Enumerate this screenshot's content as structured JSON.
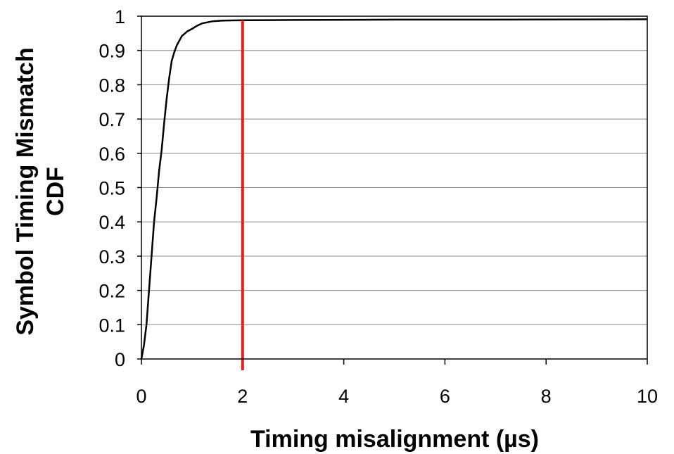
{
  "chart_data": {
    "type": "line",
    "title": "",
    "xlabel": "Timing misalignment (µs)",
    "ylabel_line1": "Symbol Timing Mismatch",
    "ylabel_line2": "CDF",
    "xlim": [
      0,
      10
    ],
    "ylim": [
      0,
      1
    ],
    "x_ticks": [
      0,
      2,
      4,
      6,
      8,
      10
    ],
    "x_tick_labels": [
      "0",
      "2",
      "4",
      "6",
      "8",
      "10"
    ],
    "y_ticks": [
      0,
      0.1,
      0.2,
      0.3,
      0.4,
      0.5,
      0.6,
      0.7,
      0.8,
      0.9,
      1
    ],
    "y_tick_labels": [
      "0",
      "0.1",
      "0.2",
      "0.3",
      "0.4",
      "0.5",
      "0.6",
      "0.7",
      "0.8",
      "0.9",
      "1"
    ],
    "grid": "horizontal",
    "legend": "none",
    "series": [
      {
        "color": "#000000",
        "x": [
          0,
          0.05,
          0.1,
          0.15,
          0.2,
          0.25,
          0.3,
          0.35,
          0.4,
          0.45,
          0.5,
          0.55,
          0.6,
          0.65,
          0.7,
          0.8,
          0.9,
          1.0,
          1.1,
          1.2,
          1.4,
          1.6,
          2.0,
          3.0,
          5.0,
          7.0,
          10.0
        ],
        "y": [
          0,
          0.04,
          0.1,
          0.2,
          0.3,
          0.4,
          0.47,
          0.55,
          0.61,
          0.69,
          0.76,
          0.82,
          0.87,
          0.895,
          0.915,
          0.942,
          0.955,
          0.963,
          0.972,
          0.979,
          0.985,
          0.987,
          0.988,
          0.989,
          0.99,
          0.99,
          0.991
        ]
      }
    ],
    "reference_line": {
      "x": 2,
      "color": "#e02020"
    }
  }
}
